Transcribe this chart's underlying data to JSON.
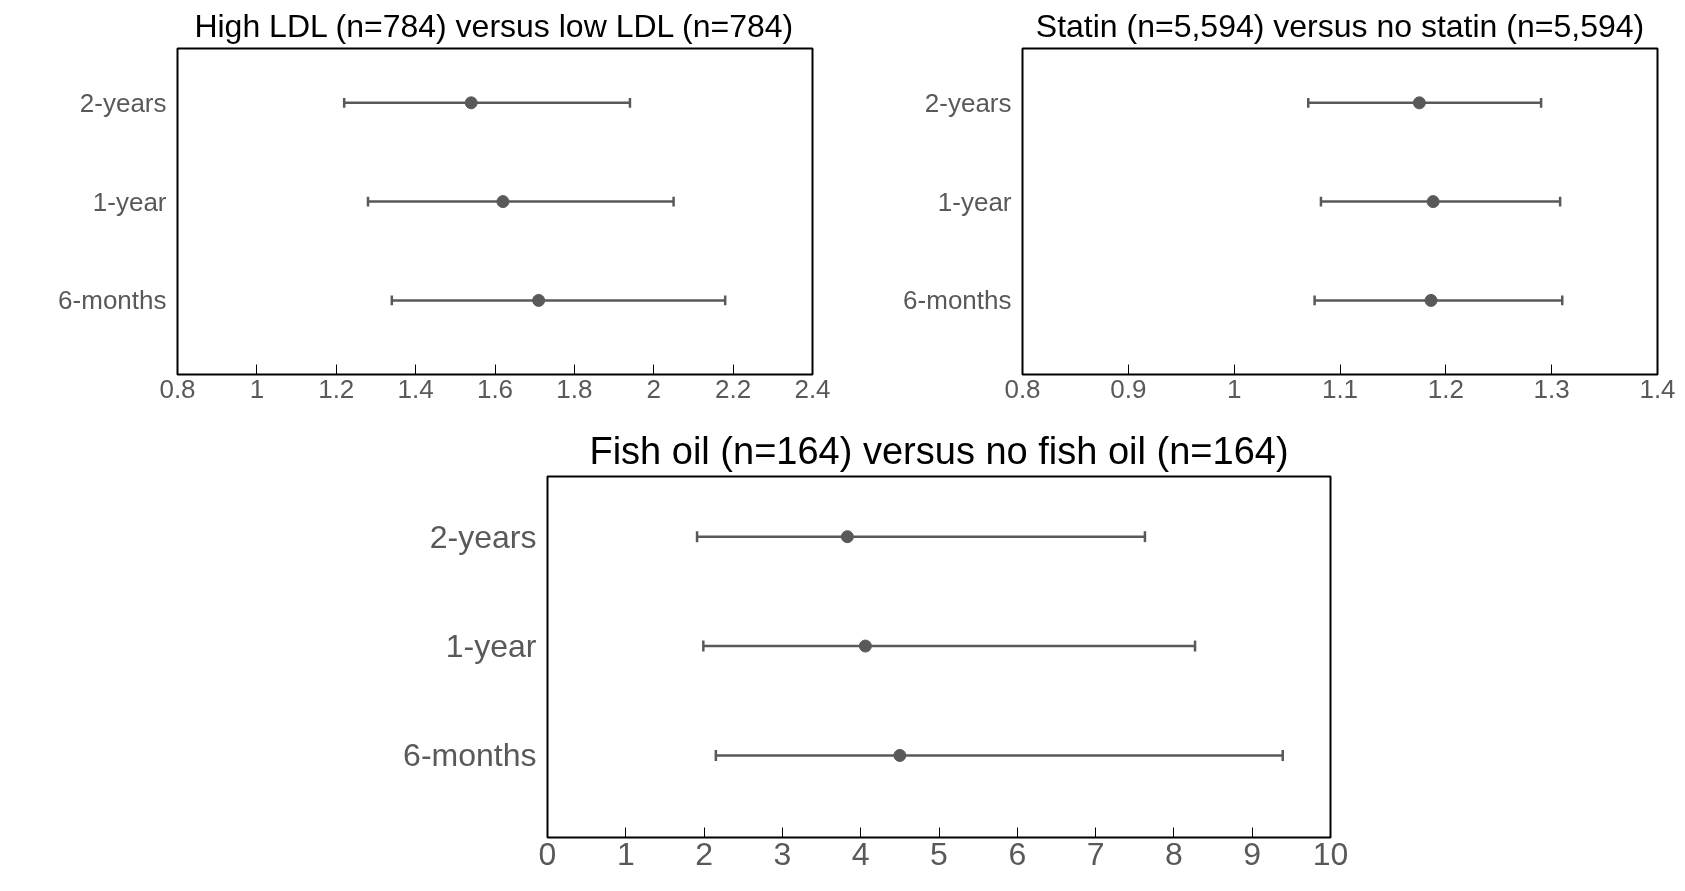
{
  "chart_data": [
    {
      "type": "scatter",
      "orientation": "horizontal",
      "title": "High LDL (n=784) versus low LDL (n=784)",
      "categories": [
        "2-years",
        "1-year",
        "6-months"
      ],
      "values": [
        1.54,
        1.62,
        1.71
      ],
      "errors": [
        [
          1.22,
          1.94
        ],
        [
          1.28,
          2.05
        ],
        [
          1.34,
          2.18
        ]
      ],
      "color": "#595959",
      "marker": "circle",
      "xlim": [
        0.8,
        2.4
      ],
      "xticks": [
        0.8,
        1,
        1.2,
        1.4,
        1.6,
        1.8,
        2,
        2.2,
        2.4
      ],
      "grid": false
    },
    {
      "type": "scatter",
      "orientation": "horizontal",
      "title": "Statin (n=5,594) versus no statin (n=5,594)",
      "categories": [
        "2-years",
        "1-year",
        "6-months"
      ],
      "values": [
        1.175,
        1.188,
        1.186
      ],
      "errors": [
        [
          1.07,
          1.29
        ],
        [
          1.082,
          1.308
        ],
        [
          1.076,
          1.31
        ]
      ],
      "color": "#595959",
      "marker": "circle",
      "xlim": [
        0.8,
        1.4
      ],
      "xticks": [
        0.8,
        0.9,
        1,
        1.1,
        1.2,
        1.3,
        1.4
      ],
      "grid": false
    },
    {
      "type": "scatter",
      "orientation": "horizontal",
      "title": "Fish oil (n=164) versus no fish oil (n=164)",
      "categories": [
        "2-years",
        "1-year",
        "6-months"
      ],
      "values": [
        3.83,
        4.06,
        4.5
      ],
      "errors": [
        [
          1.91,
          7.63
        ],
        [
          1.99,
          8.27
        ],
        [
          2.15,
          9.39
        ]
      ],
      "color": "#595959",
      "marker": "circle",
      "xlim": [
        0,
        10
      ],
      "xticks": [
        0,
        1,
        2,
        3,
        4,
        5,
        6,
        7,
        8,
        9,
        10
      ],
      "grid": false
    }
  ]
}
